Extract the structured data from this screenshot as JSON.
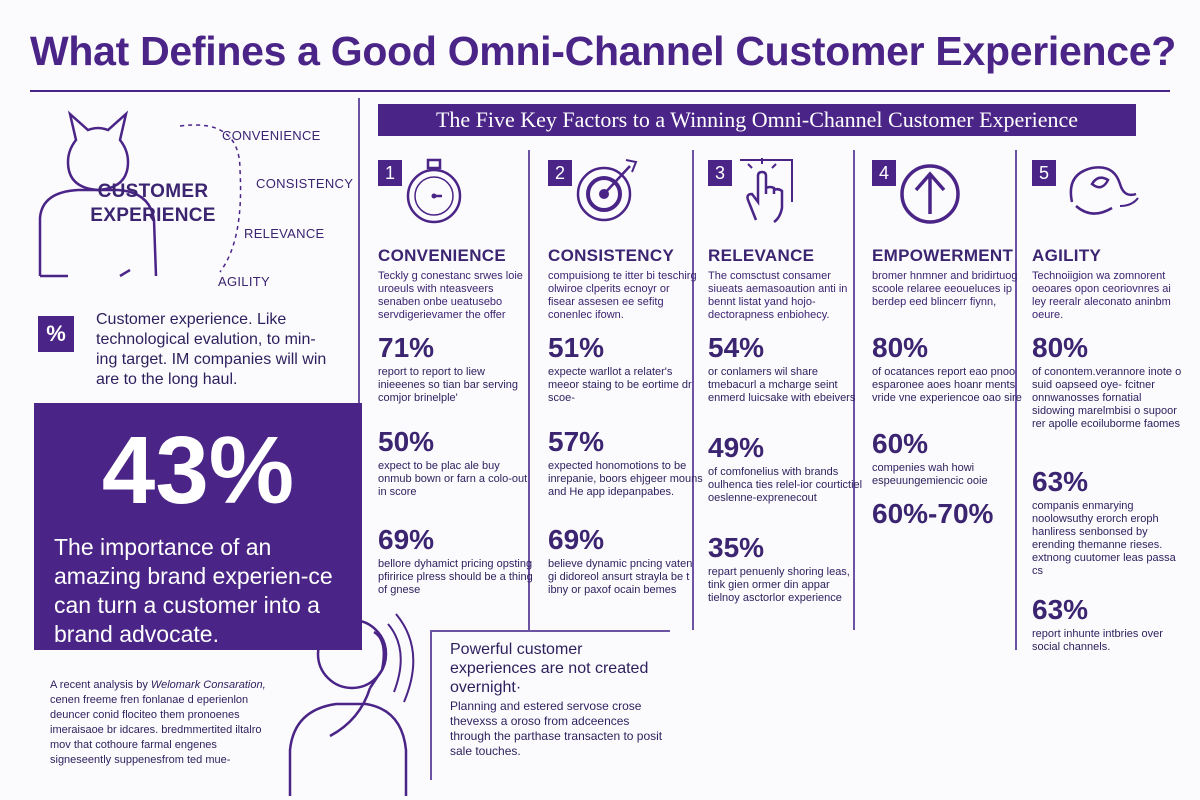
{
  "title": "What Defines a Good Omni-Channel Customer Experience?",
  "banner": "The Five Key Factors to a Winning Omni-Channel Customer Experience",
  "diagram": {
    "title_line1": "CUSTOMER",
    "title_line2": "EXPERIENCE",
    "labels": [
      "CONVENIENCE",
      "CONSISTENCY",
      "RELEVANCE",
      "AGILITY"
    ]
  },
  "intro": {
    "icon": "%",
    "text": "Customer experience. Like technological evalution, to min-ing target. IM companies will win are to the long haul."
  },
  "highlight": {
    "value": "43%",
    "text": "The importance of an amazing brand experien-ce can turn a customer into a brand advocate."
  },
  "analysis": {
    "lead": "A recent analysis by",
    "source": "Welomark Consaration,",
    "text": "cenen freeme fren fonlanae d eperienlon deuncer conid flociteo them pronoenes imeraisaoe br idcares. bredmmertited iltalro mov that cothoure farmal engenes signeseently suppenesfrom ted mue-"
  },
  "quote": {
    "main": "Powerful customer experiences are not created overnight·",
    "sub": "Planning and estered servose crose thevexss a oroso from adceences through the parthase transacten to posit sale touches."
  },
  "factors": [
    {
      "number": "1",
      "icon": "stopwatch-icon",
      "name": "CONVENIENCE",
      "desc": "Teckly g conestanc srwes loie uroeuls with nteasveers senaben onbe ueatusebo servdigerievamer the offer",
      "stats": [
        {
          "value": "71%",
          "text": "report to report to liew inieeenes so tian bar serving comjor brinelple'"
        },
        {
          "value": "50%",
          "text": "expect to be plac ale buy onmub bown or farn a colo-out in score"
        },
        {
          "value": "69%",
          "text": "bellore dyhamict pricing opsting pfiririce plress should be a thing of gnese"
        }
      ]
    },
    {
      "number": "2",
      "icon": "target-icon",
      "name": "CONSISTENCY",
      "desc": "compuisiong te itter bi teschirg olwiroe clperits ecnoyr or fisear assesen ee sefitg conenlec ifown.",
      "stats": [
        {
          "value": "51%",
          "text": "expecte warllot a relater's meeor staing to be eortime dr scoe-"
        },
        {
          "value": "57%",
          "text": "expected honomotions to be inrepanie, boors ehjgeer mouns and He app idepanpabes."
        },
        {
          "value": "69%",
          "text": "believe dynamic pncing vaten gi didoreol ansurt strayla be t ibny or paxof ocain bemes"
        }
      ]
    },
    {
      "number": "3",
      "icon": "tap-hand-icon",
      "name": "RELEVANCE",
      "desc": "The comsctust consamer siueats aemasoaution anti in bennt listat yand hojo-dectorapness enbiohecy.",
      "stats": [
        {
          "value": "54%",
          "text": "or conlamers wil share tmebacurl a mcharge seint enmerd luicsake with ebeivers"
        },
        {
          "value": "49%",
          "text": "of comfonelius with brands oulhenca ties relel-ior courtictiel oeslenne-exprenecout"
        },
        {
          "value": "35%",
          "text": "repart penuenly shoring leas, tink gien ormer din appar tielnoy asctorlor experience"
        }
      ]
    },
    {
      "number": "4",
      "icon": "arrow-up-circle-icon",
      "name": "EMPOWERMENT",
      "desc": "bromer hnmner and bridirtuog scoole relaree eeoueluces ip berdep eed blincerr fiynn,",
      "stats": [
        {
          "value": "80%",
          "text": "of ocatances report eao pnoo esparonee aoes hoanr ments vride vne experiencoe oao sire"
        },
        {
          "value": "60%",
          "text": "compenies wah howi espeuungemiencic ooie"
        },
        {
          "value": "60%-70%",
          "text": ""
        }
      ]
    },
    {
      "number": "5",
      "icon": "fast-bird-icon",
      "name": "AGILITY",
      "desc": "Technoiigion wa zomnorent oeoares opon ceoriovnres ai ley reeralr aleconato aninbm oeure.",
      "stats": [
        {
          "value": "80%",
          "text": "of conontem.verannore inote o suid oapseed oye- fcitner onnwanosses fornatial sidowing marelmbisi o supoor rer apolle ecoiluborme faomes"
        },
        {
          "value": "63%",
          "text": "companis enmarying noolowsuthy erorch eroph hanliress senbonsed by erending themanne rieses. extnong cuutomer leas passa cs"
        },
        {
          "value": "63%",
          "text": "report inhunte intbries over social channels."
        }
      ]
    }
  ]
}
